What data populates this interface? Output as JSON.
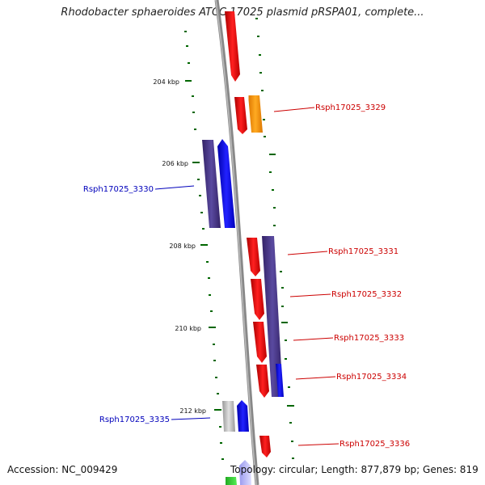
{
  "header": {
    "title": "Rhodobacter sphaeroides ATCC 17025 plasmid pRSPA01, complete..."
  },
  "footer": {
    "accession": "Accession: NC_009429",
    "summary": "Topology: circular; Length: 877,879 bp; Genes: 819"
  },
  "map": {
    "kbp_labels": [
      "204 kbp",
      "206 kbp",
      "208 kbp",
      "210 kbp",
      "212 kbp"
    ],
    "gene_labels": [
      {
        "text": "Rsph17025_3329",
        "strand": "forward"
      },
      {
        "text": "Rsph17025_3330",
        "strand": "reverse"
      },
      {
        "text": "Rsph17025_3331",
        "strand": "forward"
      },
      {
        "text": "Rsph17025_3332",
        "strand": "forward"
      },
      {
        "text": "Rsph17025_3333",
        "strand": "forward"
      },
      {
        "text": "Rsph17025_3334",
        "strand": "forward"
      },
      {
        "text": "Rsph17025_3335",
        "strand": "reverse"
      },
      {
        "text": "Rsph17025_3336",
        "strand": "forward"
      }
    ],
    "colors": {
      "forward_label": "#cc0000",
      "reverse_label": "#0000bb",
      "cds_forward": "#ff0000",
      "cds_reverse": "#0000ff",
      "orange_feature": "#ff9900",
      "purple_feature": "#443388",
      "grey_feature": "#bbbbbb",
      "backbone": "#999999",
      "ticks": "#006600"
    }
  }
}
